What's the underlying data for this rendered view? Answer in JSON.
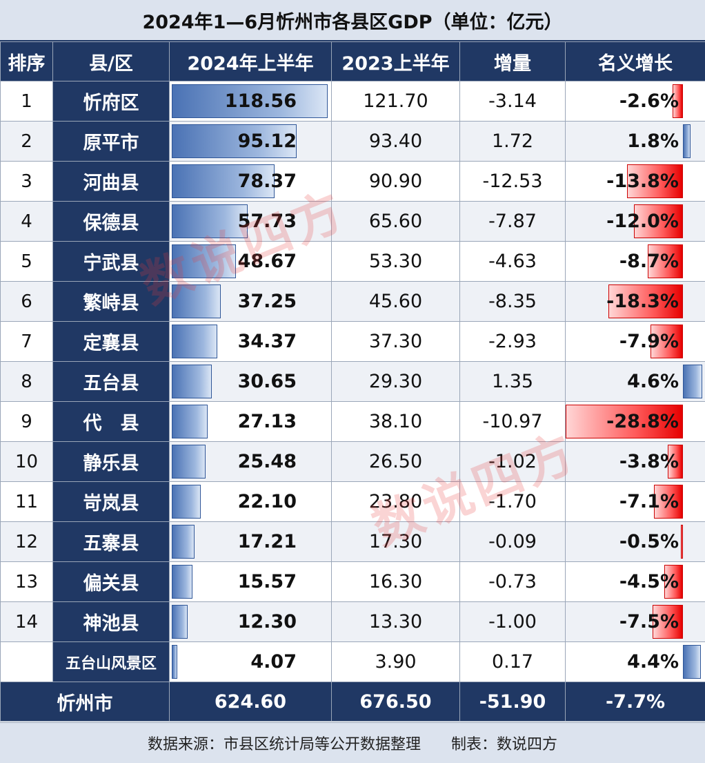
{
  "title": "2024年1—6月忻州市各县区GDP（单位：亿元）",
  "headers": [
    "排序",
    "县/区",
    "2024年上半年",
    "2023上半年",
    "增量",
    "名义增长"
  ],
  "chart_data": {
    "type": "table",
    "columns": [
      "排序",
      "县/区",
      "2024年上半年",
      "2023上半年",
      "增量",
      "名义增长"
    ],
    "rows": [
      {
        "rank": "1",
        "name": "忻府区",
        "y2024": 118.56,
        "y2024_label": "118.56",
        "y2023": "121.70",
        "delta": "-3.14",
        "growth": -2.6,
        "growth_label": "-2.6%"
      },
      {
        "rank": "2",
        "name": "原平市",
        "y2024": 95.12,
        "y2024_label": "95.12",
        "y2023": "93.40",
        "delta": "1.72",
        "growth": 1.8,
        "growth_label": "1.8%"
      },
      {
        "rank": "3",
        "name": "河曲县",
        "y2024": 78.37,
        "y2024_label": "78.37",
        "y2023": "90.90",
        "delta": "-12.53",
        "growth": -13.8,
        "growth_label": "-13.8%"
      },
      {
        "rank": "4",
        "name": "保德县",
        "y2024": 57.73,
        "y2024_label": "57.73",
        "y2023": "65.60",
        "delta": "-7.87",
        "growth": -12.0,
        "growth_label": "-12.0%"
      },
      {
        "rank": "5",
        "name": "宁武县",
        "y2024": 48.67,
        "y2024_label": "48.67",
        "y2023": "53.30",
        "delta": "-4.63",
        "growth": -8.7,
        "growth_label": "-8.7%"
      },
      {
        "rank": "6",
        "name": "繁峙县",
        "y2024": 37.25,
        "y2024_label": "37.25",
        "y2023": "45.60",
        "delta": "-8.35",
        "growth": -18.3,
        "growth_label": "-18.3%"
      },
      {
        "rank": "7",
        "name": "定襄县",
        "y2024": 34.37,
        "y2024_label": "34.37",
        "y2023": "37.30",
        "delta": "-2.93",
        "growth": -7.9,
        "growth_label": "-7.9%"
      },
      {
        "rank": "8",
        "name": "五台县",
        "y2024": 30.65,
        "y2024_label": "30.65",
        "y2023": "29.30",
        "delta": "1.35",
        "growth": 4.6,
        "growth_label": "4.6%"
      },
      {
        "rank": "9",
        "name": "代　县",
        "y2024": 27.13,
        "y2024_label": "27.13",
        "y2023": "38.10",
        "delta": "-10.97",
        "growth": -28.8,
        "growth_label": "-28.8%"
      },
      {
        "rank": "10",
        "name": "静乐县",
        "y2024": 25.48,
        "y2024_label": "25.48",
        "y2023": "26.50",
        "delta": "-1.02",
        "growth": -3.8,
        "growth_label": "-3.8%"
      },
      {
        "rank": "11",
        "name": "岢岚县",
        "y2024": 22.1,
        "y2024_label": "22.10",
        "y2023": "23.80",
        "delta": "-1.70",
        "growth": -7.1,
        "growth_label": "-7.1%"
      },
      {
        "rank": "12",
        "name": "五寨县",
        "y2024": 17.21,
        "y2024_label": "17.21",
        "y2023": "17.30",
        "delta": "-0.09",
        "growth": -0.5,
        "growth_label": "-0.5%"
      },
      {
        "rank": "13",
        "name": "偏关县",
        "y2024": 15.57,
        "y2024_label": "15.57",
        "y2023": "16.30",
        "delta": "-0.73",
        "growth": -4.5,
        "growth_label": "-4.5%"
      },
      {
        "rank": "14",
        "name": "神池县",
        "y2024": 12.3,
        "y2024_label": "12.30",
        "y2023": "13.30",
        "delta": "-1.00",
        "growth": -7.5,
        "growth_label": "-7.5%"
      },
      {
        "rank": "",
        "name": "五台山风景区",
        "y2024": 4.07,
        "y2024_label": "4.07",
        "y2023": "3.90",
        "delta": "0.17",
        "growth": 4.4,
        "growth_label": "4.4%"
      }
    ],
    "total": {
      "name": "忻州市",
      "y2024": "624.60",
      "y2023": "676.50",
      "delta": "-51.90",
      "growth": "-7.7%"
    }
  },
  "footer": "数据来源：市县区统计局等公开数据整理　　制表：数说四方",
  "watermark": "数说四方",
  "colors": {
    "header_bg": "#203864",
    "bar_blue": "#4a72b4",
    "bar_red": "#e60000"
  }
}
